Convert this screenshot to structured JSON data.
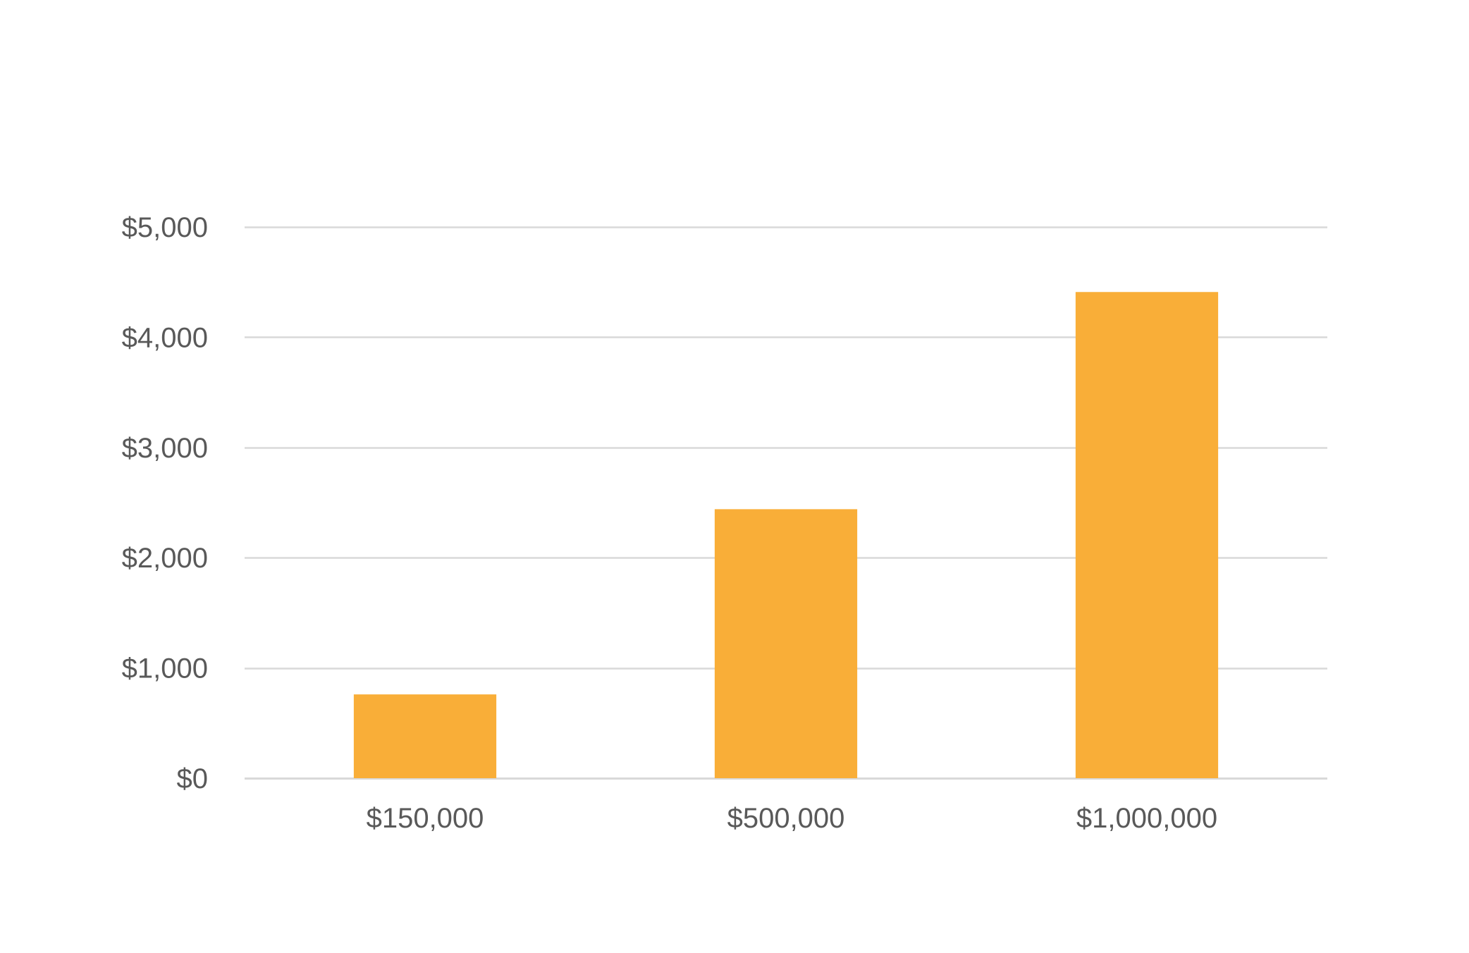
{
  "chart_data": {
    "type": "bar",
    "categories": [
      "$150,000",
      "$500,000",
      "$1,000,000"
    ],
    "values": [
      760,
      2440,
      4410
    ],
    "ylim": [
      0,
      5000
    ],
    "yticks": [
      0,
      1000,
      2000,
      3000,
      4000,
      5000
    ],
    "ytick_labels": [
      "$0",
      "$1,000",
      "$2,000",
      "$3,000",
      "$4,000",
      "$5,000"
    ],
    "title": "",
    "xlabel": "",
    "ylabel": "",
    "grid": true,
    "legend": "none",
    "colors": {
      "bar": "#F9AE38",
      "grid": "#D9D9D9",
      "axis_text": "#595959"
    }
  }
}
